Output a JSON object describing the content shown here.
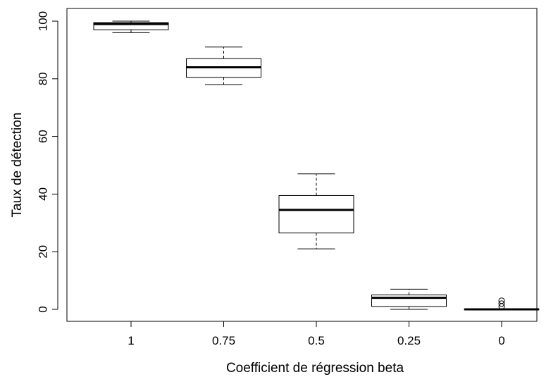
{
  "chart_data": {
    "type": "boxplot",
    "title": "",
    "xlabel": "Coefficient de régression beta",
    "ylabel": "Taux de détection",
    "ylim": [
      -4,
      104
    ],
    "yticks": [
      0,
      20,
      40,
      60,
      80,
      100
    ],
    "ytick_labels": [
      "0",
      "20",
      "40",
      "60",
      "80",
      "100"
    ],
    "grid": false,
    "legend": "none",
    "colors": {
      "box_fill": "#ffffff",
      "stroke": "#000000",
      "background": "#ffffff"
    },
    "categories": [
      "1",
      "0.75",
      "0.5",
      "0.25",
      "0"
    ],
    "boxes": [
      {
        "category": "1",
        "whisker_low": 96,
        "q1": 97,
        "median": 99,
        "q3": 99.5,
        "whisker_high": 100,
        "outliers": []
      },
      {
        "category": "0.75",
        "whisker_low": 78,
        "q1": 80.5,
        "median": 84,
        "q3": 87,
        "whisker_high": 91,
        "outliers": []
      },
      {
        "category": "0.5",
        "whisker_low": 21,
        "q1": 26.5,
        "median": 34.5,
        "q3": 39.5,
        "whisker_high": 47,
        "outliers": []
      },
      {
        "category": "0.25",
        "whisker_low": 0,
        "q1": 1,
        "median": 4,
        "q3": 5,
        "whisker_high": 7,
        "outliers": []
      },
      {
        "category": "0",
        "whisker_low": 0,
        "q1": 0,
        "median": 0,
        "q3": 0,
        "whisker_high": 0,
        "outliers": [
          1,
          2,
          3
        ]
      }
    ]
  }
}
